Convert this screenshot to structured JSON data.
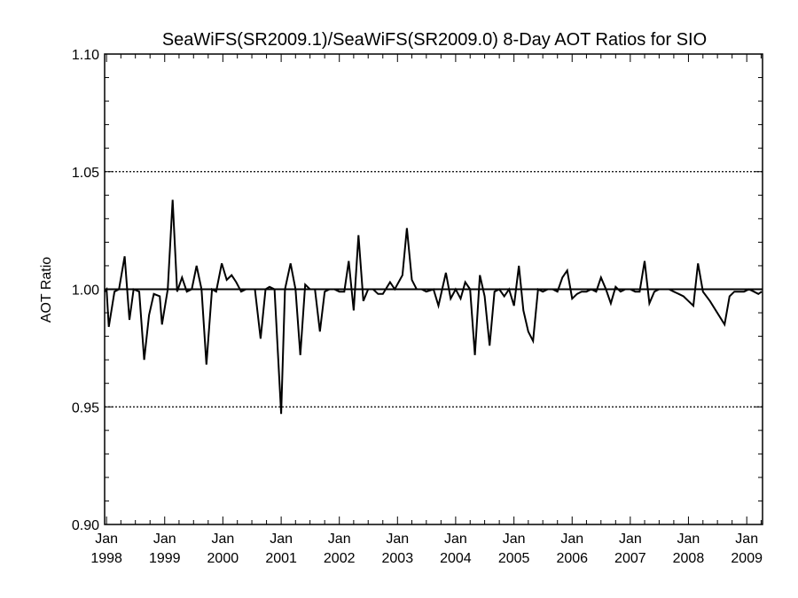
{
  "chart_data": {
    "type": "line",
    "title": "SeaWiFS(SR2009.1)/SeaWiFS(SR2009.0) 8-Day AOT Ratios for SIO",
    "xlabel": "",
    "ylabel": "AOT Ratio",
    "xlim": [
      "1997-12-20",
      "2009-04-10"
    ],
    "ylim": [
      0.9,
      1.1
    ],
    "y_ticks": [
      "0.90",
      "0.95",
      "1.00",
      "1.05",
      "1.10"
    ],
    "x_ticks": [
      {
        "month": "Jan",
        "year": "1998",
        "date": "1998-01-01"
      },
      {
        "month": "Jan",
        "year": "1999",
        "date": "1999-01-01"
      },
      {
        "month": "Jan",
        "year": "2000",
        "date": "2000-01-01"
      },
      {
        "month": "Jan",
        "year": "2001",
        "date": "2001-01-01"
      },
      {
        "month": "Jan",
        "year": "2002",
        "date": "2002-01-01"
      },
      {
        "month": "Jan",
        "year": "2003",
        "date": "2003-01-01"
      },
      {
        "month": "Jan",
        "year": "2004",
        "date": "2004-01-01"
      },
      {
        "month": "Jan",
        "year": "2005",
        "date": "2005-01-01"
      },
      {
        "month": "Jan",
        "year": "2006",
        "date": "2006-01-01"
      },
      {
        "month": "Jan",
        "year": "2007",
        "date": "2007-01-01"
      },
      {
        "month": "Jan",
        "year": "2008",
        "date": "2008-01-01"
      },
      {
        "month": "Jan",
        "year": "2009",
        "date": "2009-01-01"
      }
    ],
    "gridlines_y": [
      0.95,
      1.05
    ],
    "reference_line_y": 1.0,
    "grid": "dotted horizontal at 0.95 and 1.05",
    "series": [
      {
        "color": "#000000",
        "points": [
          [
            "1997-12-20",
            0.999
          ],
          [
            "1998-01-01",
            1.0
          ],
          [
            "1998-01-15",
            0.984
          ],
          [
            "1998-02-20",
            0.999
          ],
          [
            "1998-03-20",
            1.0
          ],
          [
            "1998-04-25",
            1.014
          ],
          [
            "1998-05-25",
            0.987
          ],
          [
            "1998-06-20",
            1.0
          ],
          [
            "1998-07-25",
            0.999
          ],
          [
            "1998-08-25",
            0.97
          ],
          [
            "1998-09-25",
            0.989
          ],
          [
            "1998-10-25",
            0.998
          ],
          [
            "1998-12-01",
            0.997
          ],
          [
            "1998-12-15",
            0.985
          ],
          [
            "1999-01-20",
            1.0
          ],
          [
            "1999-02-20",
            1.038
          ],
          [
            "1999-03-20",
            0.999
          ],
          [
            "1999-04-20",
            1.005
          ],
          [
            "1999-05-20",
            0.999
          ],
          [
            "1999-06-20",
            1.0
          ],
          [
            "1999-07-20",
            1.01
          ],
          [
            "1999-08-20",
            1.0
          ],
          [
            "1999-09-20",
            0.968
          ],
          [
            "1999-10-25",
            1.0
          ],
          [
            "1999-11-20",
            0.999
          ],
          [
            "1999-12-25",
            1.011
          ],
          [
            "2000-01-25",
            1.004
          ],
          [
            "2000-02-25",
            1.006
          ],
          [
            "2000-03-25",
            1.003
          ],
          [
            "2000-04-25",
            0.999
          ],
          [
            "2000-05-25",
            1.0
          ],
          [
            "2000-07-20",
            1.0
          ],
          [
            "2000-08-25",
            0.979
          ],
          [
            "2000-09-25",
            1.0
          ],
          [
            "2000-10-20",
            1.001
          ],
          [
            "2000-11-20",
            1.0
          ],
          [
            "2001-01-01",
            0.947
          ],
          [
            "2001-01-25",
            1.0
          ],
          [
            "2001-03-01",
            1.011
          ],
          [
            "2001-04-01",
            1.0
          ],
          [
            "2001-05-01",
            0.972
          ],
          [
            "2001-06-01",
            1.002
          ],
          [
            "2001-07-01",
            1.0
          ],
          [
            "2001-08-01",
            1.0
          ],
          [
            "2001-09-01",
            0.982
          ],
          [
            "2001-10-01",
            0.999
          ],
          [
            "2001-11-01",
            1.0
          ],
          [
            "2001-12-01",
            1.0
          ],
          [
            "2002-01-01",
            0.999
          ],
          [
            "2002-02-01",
            0.999
          ],
          [
            "2002-03-01",
            1.012
          ],
          [
            "2002-04-01",
            0.991
          ],
          [
            "2002-05-01",
            1.023
          ],
          [
            "2002-06-01",
            0.995
          ],
          [
            "2002-07-01",
            1.0
          ],
          [
            "2002-08-01",
            1.0
          ],
          [
            "2002-09-01",
            0.998
          ],
          [
            "2002-10-01",
            0.998
          ],
          [
            "2002-11-15",
            1.003
          ],
          [
            "2002-12-15",
            1.0
          ],
          [
            "2003-02-01",
            1.006
          ],
          [
            "2003-03-01",
            1.026
          ],
          [
            "2003-04-01",
            1.004
          ],
          [
            "2003-05-01",
            1.0
          ],
          [
            "2003-06-01",
            1.0
          ],
          [
            "2003-07-01",
            0.999
          ],
          [
            "2003-08-15",
            1.0
          ],
          [
            "2003-09-15",
            0.993
          ],
          [
            "2003-11-01",
            1.007
          ],
          [
            "2003-12-01",
            0.996
          ],
          [
            "2004-01-01",
            1.0
          ],
          [
            "2004-02-01",
            0.996
          ],
          [
            "2004-03-01",
            1.003
          ],
          [
            "2004-04-01",
            1.0
          ],
          [
            "2004-05-01",
            0.972
          ],
          [
            "2004-06-01",
            1.006
          ],
          [
            "2004-07-01",
            0.997
          ],
          [
            "2004-08-01",
            0.976
          ],
          [
            "2004-09-01",
            0.999
          ],
          [
            "2004-10-01",
            1.0
          ],
          [
            "2004-11-01",
            0.997
          ],
          [
            "2004-12-01",
            1.0
          ],
          [
            "2005-01-01",
            0.993
          ],
          [
            "2005-02-01",
            1.01
          ],
          [
            "2005-03-01",
            0.991
          ],
          [
            "2005-04-01",
            0.982
          ],
          [
            "2005-05-01",
            0.978
          ],
          [
            "2005-06-01",
            1.0
          ],
          [
            "2005-07-01",
            0.999
          ],
          [
            "2005-08-01",
            1.0
          ],
          [
            "2005-09-01",
            1.0
          ],
          [
            "2005-10-01",
            0.999
          ],
          [
            "2005-11-01",
            1.005
          ],
          [
            "2005-12-01",
            1.008
          ],
          [
            "2006-01-01",
            0.996
          ],
          [
            "2006-02-01",
            0.998
          ],
          [
            "2006-03-01",
            0.999
          ],
          [
            "2006-04-01",
            0.999
          ],
          [
            "2006-05-01",
            1.0
          ],
          [
            "2006-06-01",
            0.999
          ],
          [
            "2006-07-01",
            1.005
          ],
          [
            "2006-08-01",
            1.0
          ],
          [
            "2006-09-01",
            0.994
          ],
          [
            "2006-10-01",
            1.001
          ],
          [
            "2006-11-01",
            0.999
          ],
          [
            "2006-12-01",
            1.0
          ],
          [
            "2007-01-01",
            1.0
          ],
          [
            "2007-02-01",
            0.999
          ],
          [
            "2007-03-01",
            0.999
          ],
          [
            "2007-04-01",
            1.012
          ],
          [
            "2007-05-01",
            0.994
          ],
          [
            "2007-06-01",
            0.999
          ],
          [
            "2007-07-01",
            1.0
          ],
          [
            "2007-08-01",
            1.0
          ],
          [
            "2007-09-01",
            1.0
          ],
          [
            "2007-10-01",
            0.999
          ],
          [
            "2007-11-01",
            0.998
          ],
          [
            "2007-12-01",
            0.997
          ],
          [
            "2008-01-01",
            0.995
          ],
          [
            "2008-02-01",
            0.993
          ],
          [
            "2008-03-01",
            1.011
          ],
          [
            "2008-04-01",
            0.999
          ],
          [
            "2008-05-15",
            0.995
          ],
          [
            "2008-08-15",
            0.985
          ],
          [
            "2008-09-15",
            0.997
          ],
          [
            "2008-10-15",
            0.999
          ],
          [
            "2008-11-15",
            0.999
          ],
          [
            "2008-12-15",
            0.999
          ],
          [
            "2009-01-15",
            1.0
          ],
          [
            "2009-02-15",
            0.999
          ],
          [
            "2009-03-15",
            0.998
          ],
          [
            "2009-04-05",
            0.999
          ]
        ]
      }
    ]
  }
}
